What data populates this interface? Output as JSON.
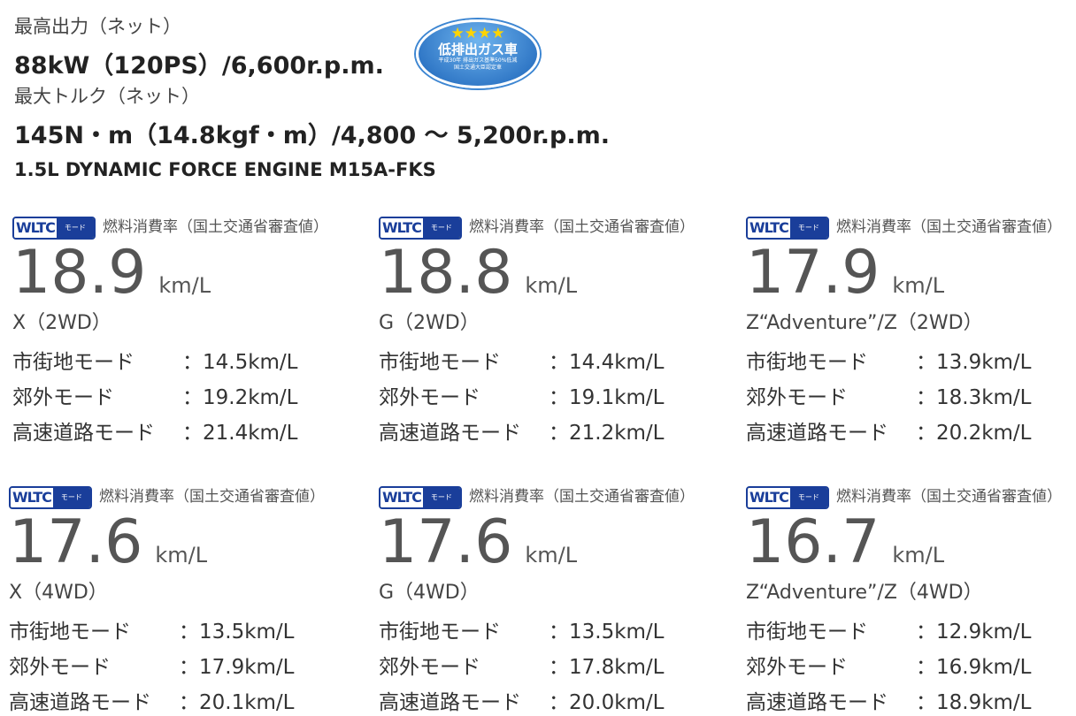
{
  "header": {
    "power_label": "最高出力（ネット）",
    "power_value": "88kW（120PS）/6,600r.p.m.",
    "torque_label": "最大トルク（ネット）",
    "torque_value": "145N・m（14.8kgf・m）/4,800 ～ 5,200r.p.m.",
    "engine": "1.5L DYNAMIC FORCE ENGINE M15A-FKS"
  },
  "badge": {
    "stars": "★★★★",
    "title": "低排出ガス車",
    "line1": "平成30年 排出ガス基準50%低減",
    "line2": "国土交通大臣認定車"
  },
  "logo": {
    "wltc": "WLTC",
    "mode": "モード"
  },
  "caption": "燃料消費率（国土交通省審査値）",
  "unit": "km/L",
  "mode_labels": [
    "市街地モード",
    "郊外モード",
    "高速道路モード"
  ],
  "cards": [
    {
      "value": "18.9",
      "variant": "X（2WD）",
      "modes": [
        "：14.5km/L",
        "：19.2km/L",
        "：21.4km/L"
      ]
    },
    {
      "value": "18.8",
      "variant": "G（2WD）",
      "modes": [
        "：14.4km/L",
        "：19.1km/L",
        "：21.2km/L"
      ]
    },
    {
      "value": "17.9",
      "variant": "Z“Adventure”/Z（2WD）",
      "modes": [
        "：13.9km/L",
        "：18.3km/L",
        "：20.2km/L"
      ]
    },
    {
      "value": "17.6",
      "variant": "X（4WD）",
      "modes": [
        "：13.5km/L",
        "：17.9km/L",
        "：20.1km/L"
      ]
    },
    {
      "value": "17.6",
      "variant": "G（4WD）",
      "modes": [
        "：13.5km/L",
        "：17.8km/L",
        "：20.0km/L"
      ]
    },
    {
      "value": "16.7",
      "variant": "Z“Adventure”/Z（4WD）",
      "modes": [
        "：12.9km/L",
        "：16.9km/L",
        "：18.9km/L"
      ]
    }
  ]
}
